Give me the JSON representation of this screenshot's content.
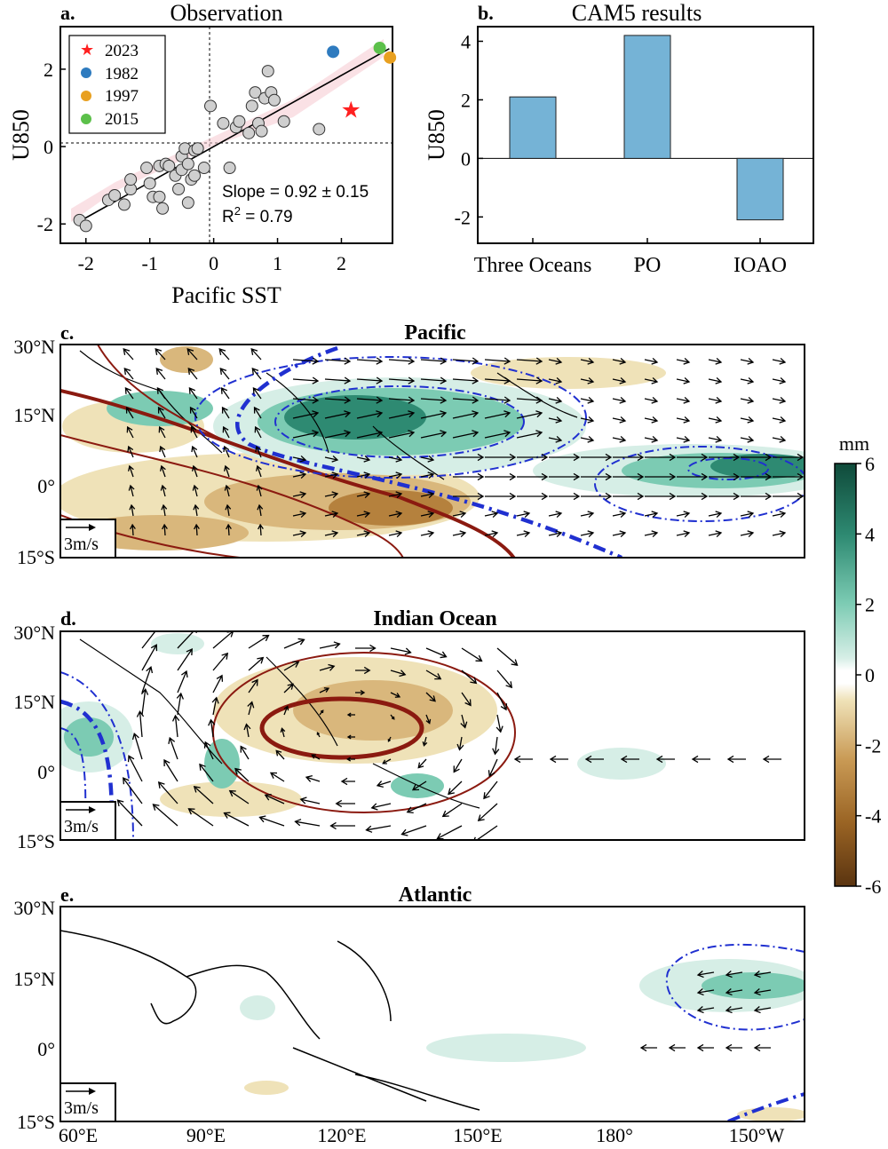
{
  "panel_a": {
    "letter": "a.",
    "title": "Observation",
    "xlabel": "Pacific SST",
    "ylabel": "U850",
    "slope_text": "Slope = 0.92 ± 0.15",
    "r2_prefix": "R",
    "r2_sup": "2",
    "r2_suffix": " = 0.79",
    "legend": [
      {
        "label": "2023",
        "color": "#ff2020",
        "marker": "star"
      },
      {
        "label": "1982",
        "color": "#2e7bbf",
        "marker": "circle"
      },
      {
        "label": "1997",
        "color": "#e8a020",
        "marker": "circle"
      },
      {
        "label": "2015",
        "color": "#5cc04a",
        "marker": "circle"
      }
    ]
  },
  "panel_b": {
    "letter": "b.",
    "title": "CAM5 results",
    "ylabel": "U850",
    "bar_color": "#75b3d6"
  },
  "maps": {
    "titles": [
      "Pacific",
      "Indian Ocean",
      "Atlantic"
    ],
    "letters": [
      "c.",
      "d.",
      "e."
    ],
    "lat_labels": [
      "30°N",
      "15°N",
      "0°",
      "15°S"
    ],
    "lon_labels": [
      "60°E",
      "90°E",
      "120°E",
      "150°E",
      "180°",
      "150°W"
    ],
    "ref_vector": "3m/s"
  },
  "colorbar": {
    "unit": "mm",
    "ticks": [
      "6",
      "4",
      "2",
      "0",
      "-2",
      "-4",
      "-6"
    ]
  },
  "chart_data": [
    {
      "type": "scatter",
      "title": "Observation",
      "xlabel": "Pacific SST",
      "ylabel": "U850",
      "xlim": [
        -2.4,
        2.8
      ],
      "ylim": [
        -2.5,
        3.1
      ],
      "xticks": [
        -2,
        -1,
        0,
        1,
        2
      ],
      "yticks": [
        -2,
        0,
        2
      ],
      "regression": {
        "slope": 0.92,
        "slope_err": 0.15,
        "r2": 0.79,
        "intercept": 0.0
      },
      "points": [
        [
          -2.1,
          -1.9
        ],
        [
          -2.0,
          -2.05
        ],
        [
          -1.65,
          -1.38
        ],
        [
          -1.55,
          -1.26
        ],
        [
          -1.4,
          -1.5
        ],
        [
          -1.3,
          -1.1
        ],
        [
          -1.3,
          -0.85
        ],
        [
          -1.05,
          -0.55
        ],
        [
          -1.0,
          -0.95
        ],
        [
          -0.95,
          -1.3
        ],
        [
          -0.85,
          -1.3
        ],
        [
          -0.85,
          -0.5
        ],
        [
          -0.8,
          -1.6
        ],
        [
          -0.75,
          -0.45
        ],
        [
          -0.7,
          -0.5
        ],
        [
          -0.6,
          -0.75
        ],
        [
          -0.55,
          -1.1
        ],
        [
          -0.5,
          -0.6
        ],
        [
          -0.5,
          -0.25
        ],
        [
          -0.45,
          -0.05
        ],
        [
          -0.4,
          -0.45
        ],
        [
          -0.4,
          -1.45
        ],
        [
          -0.35,
          -0.85
        ],
        [
          -0.3,
          -0.1
        ],
        [
          -0.3,
          -0.75
        ],
        [
          -0.25,
          -0.05
        ],
        [
          -0.15,
          -0.55
        ],
        [
          -0.05,
          1.05
        ],
        [
          0.15,
          0.6
        ],
        [
          0.25,
          -0.55
        ],
        [
          0.35,
          0.5
        ],
        [
          0.4,
          0.65
        ],
        [
          0.55,
          0.35
        ],
        [
          0.6,
          1.05
        ],
        [
          0.65,
          1.4
        ],
        [
          0.7,
          0.6
        ],
        [
          0.75,
          0.4
        ],
        [
          0.8,
          1.25
        ],
        [
          0.85,
          1.95
        ],
        [
          0.9,
          1.4
        ],
        [
          0.95,
          1.2
        ],
        [
          1.1,
          0.65
        ],
        [
          1.65,
          0.45
        ]
      ],
      "highlights": [
        {
          "year": "2023",
          "x": 2.15,
          "y": 0.95
        },
        {
          "year": "1982",
          "x": 1.87,
          "y": 2.45
        },
        {
          "year": "1997",
          "x": 2.76,
          "y": 2.3
        },
        {
          "year": "2015",
          "x": 2.6,
          "y": 2.55
        }
      ]
    },
    {
      "type": "bar",
      "title": "CAM5 results",
      "ylabel": "U850",
      "categories": [
        "Three Oceans",
        "PO",
        "IOAO"
      ],
      "values": [
        2.1,
        4.2,
        -2.1
      ],
      "ylim": [
        -2.9,
        4.5
      ],
      "yticks": [
        -2,
        0,
        2,
        4
      ]
    }
  ]
}
